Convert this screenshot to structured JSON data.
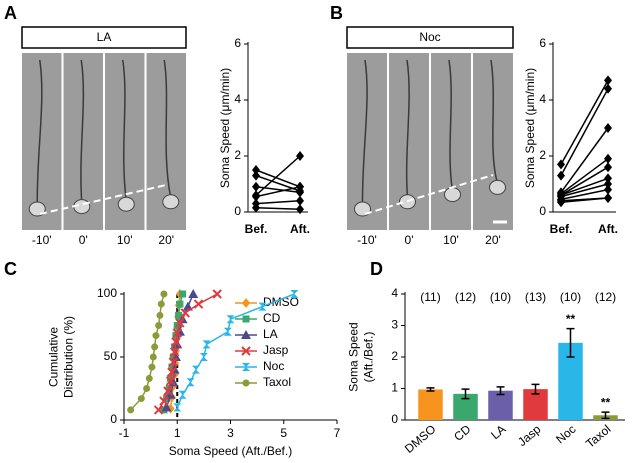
{
  "chart_data": [
    {
      "type": "line",
      "panel_label": "A",
      "image_title": "LA",
      "image_times": [
        "-10'",
        "0'",
        "10'",
        "20'"
      ],
      "ylabel": "Soma Speed (μm/min)",
      "categories": [
        "Bef.",
        "Aft."
      ],
      "ylim": [
        0,
        6
      ],
      "yticks": [
        0,
        2,
        4,
        6
      ],
      "series": [
        {
          "color": "#000000",
          "values": [
            1.5,
            0.9
          ]
        },
        {
          "color": "#000000",
          "values": [
            1.3,
            0.75
          ]
        },
        {
          "color": "#000000",
          "values": [
            0.9,
            0.7
          ]
        },
        {
          "color": "#000000",
          "values": [
            0.6,
            2.0
          ]
        },
        {
          "color": "#000000",
          "values": [
            0.55,
            0.9
          ]
        },
        {
          "color": "#000000",
          "values": [
            0.3,
            0.4
          ]
        },
        {
          "color": "#000000",
          "values": [
            0.15,
            0.1
          ]
        }
      ]
    },
    {
      "type": "line",
      "panel_label": "B",
      "image_title": "Noc",
      "image_times": [
        "-10'",
        "0'",
        "10'",
        "20'"
      ],
      "ylabel": "Soma Speed (μm/min)",
      "categories": [
        "Bef.",
        "Aft."
      ],
      "ylim": [
        0,
        6
      ],
      "yticks": [
        0,
        2,
        4,
        6
      ],
      "series": [
        {
          "color": "#000000",
          "values": [
            1.7,
            4.7
          ]
        },
        {
          "color": "#000000",
          "values": [
            1.3,
            4.4
          ]
        },
        {
          "color": "#000000",
          "values": [
            0.7,
            3.0
          ]
        },
        {
          "color": "#000000",
          "values": [
            0.65,
            1.9
          ]
        },
        {
          "color": "#000000",
          "values": [
            0.6,
            1.6
          ]
        },
        {
          "color": "#000000",
          "values": [
            0.6,
            1.2
          ]
        },
        {
          "color": "#000000",
          "values": [
            0.55,
            1.0
          ]
        },
        {
          "color": "#000000",
          "values": [
            0.45,
            0.8
          ]
        },
        {
          "color": "#000000",
          "values": [
            0.4,
            0.5
          ]
        },
        {
          "color": "#000000",
          "values": [
            0.35,
            0.5
          ]
        }
      ]
    },
    {
      "type": "line",
      "panel_label": "C",
      "ylabel": [
        "Cumulative",
        "Distribution (%)"
      ],
      "xlabel": "Soma Speed (Aft./Bef.)",
      "xlim": [
        -1,
        7
      ],
      "xticks": [
        -1,
        1,
        3,
        5,
        7
      ],
      "ylim": [
        0,
        100
      ],
      "yticks": [
        0,
        50,
        100
      ],
      "reference_x": 1,
      "legend": "right",
      "series": [
        {
          "name": "DMSO",
          "color": "#f7941d",
          "marker": "diamond",
          "x": [
            0.75,
            0.8,
            0.85,
            0.9,
            0.92,
            0.95,
            0.97,
            1.0,
            1.03,
            1.06,
            1.1
          ],
          "values": [
            9,
            18,
            27,
            36,
            45,
            55,
            64,
            73,
            82,
            91,
            100
          ]
        },
        {
          "name": "CD",
          "color": "#3aa76d",
          "marker": "square",
          "x": [
            0.5,
            0.6,
            0.7,
            0.75,
            0.8,
            0.85,
            0.9,
            0.95,
            1.0,
            1.05,
            1.1,
            1.2
          ],
          "values": [
            8,
            17,
            25,
            33,
            42,
            50,
            58,
            67,
            75,
            83,
            92,
            100
          ]
        },
        {
          "name": "LA",
          "color": "#4b4a8c",
          "marker": "triangle",
          "x": [
            0.6,
            0.75,
            0.85,
            0.9,
            0.95,
            1.0,
            1.1,
            1.2,
            1.4,
            1.6
          ],
          "values": [
            10,
            20,
            30,
            40,
            50,
            60,
            70,
            80,
            90,
            100
          ]
        },
        {
          "name": "Jasp",
          "color": "#e03a3e",
          "marker": "x",
          "x": [
            0.3,
            0.5,
            0.65,
            0.75,
            0.8,
            0.85,
            0.9,
            0.95,
            1.0,
            1.1,
            1.3,
            1.8,
            2.5
          ],
          "values": [
            8,
            15,
            23,
            31,
            38,
            46,
            54,
            62,
            69,
            77,
            85,
            92,
            100
          ]
        },
        {
          "name": "Noc",
          "color": "#29b6e8",
          "marker": "hourglass",
          "x": [
            1.0,
            1.2,
            1.5,
            1.7,
            2.0,
            2.1,
            2.9,
            3.0,
            4.2,
            5.4
          ],
          "values": [
            10,
            20,
            30,
            40,
            50,
            60,
            70,
            80,
            90,
            100
          ]
        },
        {
          "name": "Taxol",
          "color": "#8c9a3a",
          "marker": "circle",
          "x": [
            -0.75,
            -0.35,
            -0.15,
            -0.05,
            0.05,
            0.1,
            0.15,
            0.2,
            0.3,
            0.35,
            0.4,
            0.5
          ],
          "values": [
            8,
            17,
            25,
            33,
            42,
            50,
            58,
            67,
            75,
            83,
            92,
            100
          ]
        }
      ]
    },
    {
      "type": "bar",
      "panel_label": "D",
      "ylabel": [
        "Soma Speed",
        "(Aft./Bef.)"
      ],
      "categories": [
        "DMSO",
        "CD",
        "LA",
        "Jasp",
        "Noc",
        "Taxol"
      ],
      "values": [
        0.97,
        0.83,
        0.93,
        0.98,
        2.45,
        0.15
      ],
      "errors": [
        0.05,
        0.15,
        0.12,
        0.15,
        0.45,
        0.1
      ],
      "colors": [
        "#f7941d",
        "#3aa76d",
        "#6a5fa8",
        "#e03a3e",
        "#29b6e8",
        "#8c9a3a"
      ],
      "count_labels": [
        "(11)",
        "(12)",
        "(10)",
        "(13)",
        "(10)",
        "(12)"
      ],
      "significance": [
        null,
        null,
        null,
        null,
        "**",
        "**"
      ],
      "ylim": [
        0,
        4
      ],
      "yticks": [
        0,
        1,
        2,
        3,
        4
      ]
    }
  ]
}
